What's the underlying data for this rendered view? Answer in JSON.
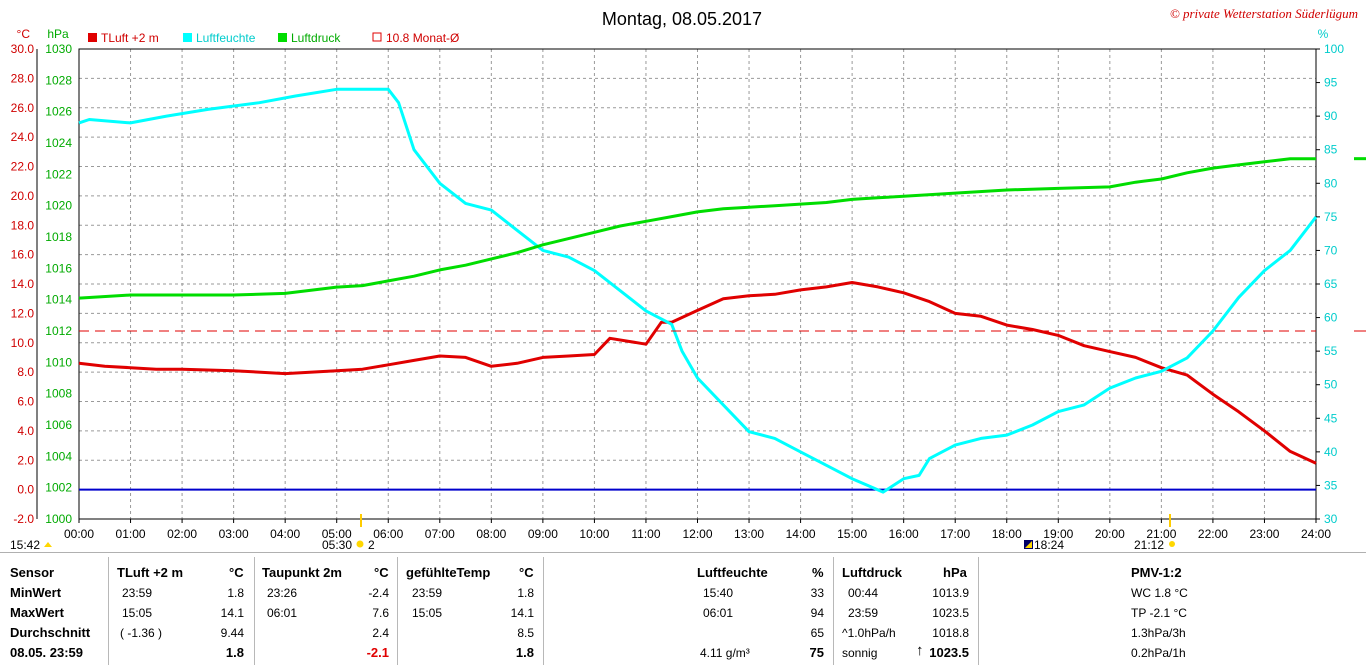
{
  "chart_data": {
    "type": "line",
    "title": "Montag, 08.05.2017",
    "credit": "© private Wetterstation Süderlügum",
    "left_units": [
      "°C",
      "hPa"
    ],
    "right_unit": "%",
    "x_ticks": [
      "00:00",
      "01:00",
      "02:00",
      "03:00",
      "04:00",
      "05:00",
      "06:00",
      "07:00",
      "08:00",
      "09:00",
      "10:00",
      "11:00",
      "12:00",
      "13:00",
      "14:00",
      "15:00",
      "16:00",
      "17:00",
      "18:00",
      "19:00",
      "20:00",
      "21:00",
      "22:00",
      "23:00",
      "24:00"
    ],
    "temp_axis": {
      "range": [
        -2.0,
        30.0
      ],
      "ticks": [
        "-2.0",
        "0.0",
        "2.0",
        "4.0",
        "6.0",
        "8.0",
        "10.0",
        "12.0",
        "14.0",
        "16.0",
        "18.0",
        "20.0",
        "22.0",
        "24.0",
        "26.0",
        "28.0",
        "30.0"
      ]
    },
    "pressure_axis": {
      "range": [
        1000,
        1030
      ],
      "ticks": [
        "1000",
        "1002",
        "1004",
        "1006",
        "1008",
        "1010",
        "1012",
        "1014",
        "1016",
        "1018",
        "1020",
        "1022",
        "1024",
        "1026",
        "1028",
        "1030"
      ]
    },
    "humidity_axis": {
      "range": [
        30,
        100
      ],
      "ticks": [
        "30",
        "35",
        "40",
        "45",
        "50",
        "55",
        "60",
        "65",
        "70",
        "75",
        "80",
        "85",
        "90",
        "95",
        "100"
      ]
    },
    "legend": [
      {
        "label": "TLuft +2 m",
        "color": "#e00000",
        "marker": "filled"
      },
      {
        "label": "Luftfeuchte",
        "color": "#00ffff",
        "marker": "filled"
      },
      {
        "label": "Luftdruck",
        "color": "#00dd00",
        "marker": "filled"
      },
      {
        "label": "10.8 Monat-Ø",
        "color": "#e00000",
        "marker": "outline"
      }
    ],
    "series": [
      {
        "name": "TLuft +2 m",
        "axis": "temp",
        "color": "#e00000",
        "x": [
          0,
          0.5,
          1,
          1.5,
          2,
          3,
          4,
          5,
          5.5,
          6,
          6.5,
          7,
          7.5,
          8,
          8.5,
          9,
          9.5,
          10,
          10.3,
          11,
          11.3,
          11.5,
          12,
          12.5,
          13,
          13.5,
          14,
          14.5,
          15,
          15.5,
          16,
          16.5,
          17,
          17.5,
          18,
          18.5,
          19,
          19.5,
          20,
          20.5,
          21,
          21.5,
          22,
          22.5,
          23,
          23.5,
          24
        ],
        "y": [
          8.6,
          8.4,
          8.3,
          8.2,
          8.2,
          8.1,
          7.9,
          8.1,
          8.2,
          8.5,
          8.8,
          9.1,
          9.0,
          8.4,
          8.6,
          9.0,
          9.1,
          9.2,
          10.3,
          9.9,
          11.4,
          11.4,
          12.2,
          13.0,
          13.2,
          13.3,
          13.6,
          13.8,
          14.1,
          13.8,
          13.4,
          12.8,
          12.0,
          11.8,
          11.2,
          10.9,
          10.5,
          9.8,
          9.4,
          9.0,
          8.3,
          7.8,
          6.5,
          5.3,
          4.0,
          2.6,
          1.8
        ]
      },
      {
        "name": "Luftfeuchte",
        "axis": "humidity",
        "color": "#00ffff",
        "x": [
          0,
          0.2,
          1,
          1.7,
          2.5,
          3.5,
          4.2,
          5,
          6,
          6.2,
          6.5,
          7,
          7.5,
          8,
          8.5,
          9,
          9.5,
          10,
          10.5,
          11,
          11.5,
          11.7,
          12,
          12.5,
          13,
          13.5,
          14,
          14.5,
          15,
          15.3,
          15.6,
          16,
          16.3,
          16.5,
          17,
          17.5,
          18,
          18.5,
          19,
          19.5,
          20,
          20.5,
          21,
          21.5,
          22,
          22.5,
          23,
          23.5,
          24
        ],
        "y": [
          89,
          89.5,
          89,
          90,
          91,
          92,
          93,
          94,
          94,
          92,
          85,
          80,
          77,
          76,
          73,
          70,
          69,
          67,
          64,
          61,
          59,
          55,
          51,
          47,
          43,
          42,
          40,
          38,
          36,
          35,
          34,
          36,
          36.5,
          39,
          41,
          42,
          42.5,
          44,
          46,
          47,
          49.5,
          51,
          52,
          54,
          58,
          63,
          67,
          70,
          75
        ]
      },
      {
        "name": "Luftdruck",
        "axis": "pressure",
        "color": "#00dd00",
        "x": [
          0,
          1,
          2,
          3,
          4,
          5,
          5.5,
          6,
          6.5,
          7,
          7.5,
          8,
          8.5,
          9,
          9.5,
          10,
          10.5,
          11,
          11.5,
          12,
          12.5,
          13,
          13.5,
          14,
          14.5,
          15,
          15.5,
          16,
          17,
          18,
          19,
          20,
          20.5,
          21,
          21.5,
          22,
          22.5,
          23,
          23.5,
          24
        ],
        "y": [
          1014.1,
          1014.3,
          1014.3,
          1014.3,
          1014.4,
          1014.8,
          1014.9,
          1015.2,
          1015.5,
          1015.9,
          1016.2,
          1016.6,
          1017.0,
          1017.5,
          1017.9,
          1018.3,
          1018.7,
          1019.0,
          1019.3,
          1019.6,
          1019.8,
          1019.9,
          1020.0,
          1020.1,
          1020.2,
          1020.4,
          1020.5,
          1020.6,
          1020.8,
          1021.0,
          1021.1,
          1021.2,
          1021.5,
          1021.7,
          1022.1,
          1022.4,
          1022.6,
          1022.8,
          1023.0,
          1023.0
        ]
      },
      {
        "name": "10.8 Monat-Ø",
        "axis": "temp",
        "color": "#e00000",
        "dashed": true,
        "x": [
          0,
          24
        ],
        "y": [
          10.8,
          10.8
        ]
      }
    ],
    "zero_line": {
      "axis": "temp",
      "value": 0.0,
      "color": "#0000cc"
    },
    "grid": true,
    "sun_markers": {
      "sunrise_label": "05:30",
      "sunset_label": "21:12",
      "left_time": "15:42",
      "event_time": "18:24",
      "suffix": "2"
    }
  },
  "table": {
    "headers": {
      "sensor": "Sensor",
      "tluft": "TLuft +2 m",
      "tluft_unit": "°C",
      "taupunkt": "Taupunkt 2m",
      "taupunkt_unit": "°C",
      "gefuehlt": "gefühlteTemp",
      "gefuehlt_unit": "°C",
      "feuchte": "Luftfeuchte",
      "feuchte_unit": "%",
      "druck": "Luftdruck",
      "druck_unit": "hPa",
      "pmv": "PMV-1:2"
    },
    "rows": [
      {
        "label": "MinWert",
        "tluft_time": "23:59",
        "tluft_val": "1.8",
        "tau_time": "23:26",
        "tau_val": "-2.4",
        "gef_time": "23:59",
        "gef_val": "1.8",
        "feuchte_time": "15:40",
        "feuchte_val": "33",
        "druck_time": "00:44",
        "druck_val": "1013.9",
        "pmv": "WC 1.8 °C"
      },
      {
        "label": "MaxWert",
        "tluft_time": "15:05",
        "tluft_val": "14.1",
        "tau_time": "06:01",
        "tau_val": "7.6",
        "gef_time": "15:05",
        "gef_val": "14.1",
        "feuchte_time": "06:01",
        "feuchte_val": "94",
        "druck_time": "23:59",
        "druck_val": "1023.5",
        "pmv": "TP -2.1 °C"
      },
      {
        "label": "Durchschnitt",
        "tluft_time": "( -1.36 )",
        "tluft_val": "9.44",
        "tau_time": "",
        "tau_val": "2.4",
        "gef_time": "",
        "gef_val": "8.5",
        "feuchte_time": "",
        "feuchte_val": "65",
        "druck_time": "^1.0hPa/h",
        "druck_val": "1018.8",
        "pmv": "1.3hPa/3h"
      }
    ],
    "current": {
      "label": "08.05. 23:59",
      "tluft": "1.8",
      "tau": "-2.1",
      "gef": "1.8",
      "abs_feuchte": "4.11 g/m³",
      "feuchte": "75",
      "wetter": "sonnig",
      "druck": "1023.5",
      "pmv": "0.2hPa/1h"
    }
  }
}
